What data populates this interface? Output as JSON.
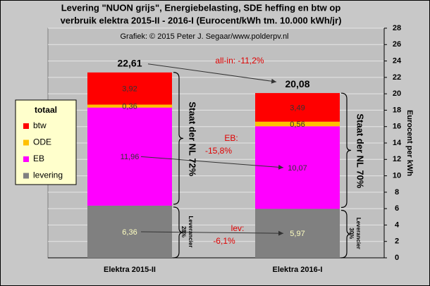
{
  "chart_data": {
    "type": "stacked_bar",
    "title": [
      "Levering \"NUON grijs\", Energiebelasting,  SDE heffing en btw op",
      "verbruik elektra 2015-II - 2016-I (Eurocent/kWh tm. 10.000 kWh/jr)"
    ],
    "subtitle": "Grafiek: © 2015 Peter J. Segaar/www.polderpv.nl",
    "y_axis_label": "Eurocent per kWh",
    "categories": [
      "Elektra 2015-II",
      "Elektra 2016-I"
    ],
    "series": [
      {
        "name": "levering",
        "color": "#808080",
        "values": [
          6.36,
          5.97
        ],
        "value_labels": [
          "6,36",
          "5,97"
        ]
      },
      {
        "name": "EB",
        "color": "#ff00ff",
        "values": [
          11.96,
          10.07
        ],
        "value_labels": [
          "11,96",
          "10,07"
        ]
      },
      {
        "name": "ODE",
        "color": "#ffc000",
        "values": [
          0.36,
          0.56
        ],
        "value_labels": [
          "0,36",
          "0,56"
        ]
      },
      {
        "name": "btw",
        "color": "#ff0000",
        "values": [
          3.92,
          3.49
        ],
        "value_labels": [
          "3,92",
          "3,49"
        ]
      }
    ],
    "totals": {
      "values": [
        22.61,
        20.08
      ],
      "value_labels": [
        "22,61",
        "20,08"
      ]
    },
    "legend_title": "totaal",
    "legend_position": "left",
    "ylim": [
      0,
      28
    ],
    "yticks": [
      0,
      2,
      4,
      6,
      8,
      10,
      12,
      14,
      16,
      18,
      20,
      22,
      24,
      26,
      28
    ],
    "grid": true,
    "annotations": [
      [
        "all-in: -11,2%"
      ],
      [
        "EB:",
        "-15,8%"
      ],
      [
        "lev:",
        "-6,1%"
      ]
    ],
    "brace_labels": {
      "state": [
        "Staat der NL  72%",
        "Staat der NL  70%"
      ],
      "supplier": [
        [
          "Leverancier",
          "28%"
        ],
        [
          "Leverancier",
          "30%"
        ]
      ]
    }
  }
}
